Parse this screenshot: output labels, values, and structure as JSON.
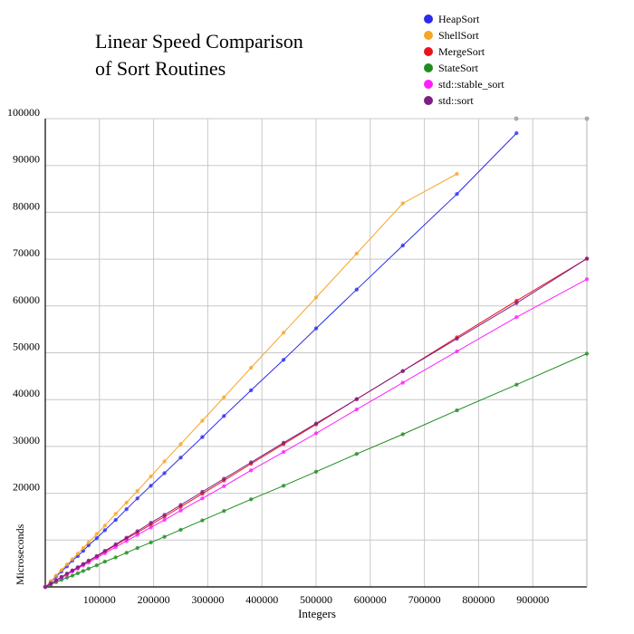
{
  "chart_data": {
    "type": "line",
    "title": [
      "Linear Speed Comparison",
      "of Sort Routines"
    ],
    "xlabel": "Integers",
    "ylabel": "Microseconds",
    "xlim": [
      0,
      1000000
    ],
    "ylim": [
      0,
      100000
    ],
    "xticks": [
      100000,
      200000,
      300000,
      400000,
      500000,
      600000,
      700000,
      800000,
      900000
    ],
    "xtick_labels": [
      "100000",
      "200000",
      "300000",
      "400000",
      "500000",
      "600000",
      "700000",
      "800000",
      "900000"
    ],
    "yticks": [
      20000,
      30000,
      40000,
      50000,
      60000,
      70000,
      80000,
      90000,
      100000
    ],
    "ytick_labels": [
      "20000",
      "30000",
      "40000",
      "50000",
      "60000",
      "70000",
      "80000",
      "90000",
      "100000"
    ],
    "grid": true,
    "legend_position": "top-right",
    "series": [
      {
        "name": "HeapSort",
        "color": "#2a2af2",
        "x": [
          0,
          10000,
          20000,
          30000,
          40000,
          50000,
          60000,
          70000,
          80000,
          95000,
          110000,
          130000,
          150000,
          170000,
          195000,
          220000,
          250000,
          290000,
          330000,
          380000,
          440000,
          500000,
          575000,
          660000,
          760000,
          870000
        ],
        "y": [
          0,
          1100,
          2200,
          3300,
          4400,
          5600,
          6600,
          7700,
          8900,
          10400,
          12100,
          14300,
          16600,
          18900,
          21600,
          24300,
          27600,
          32000,
          36500,
          42000,
          48500,
          55200,
          63500,
          72900,
          83900,
          96900
        ]
      },
      {
        "name": "ShellSort",
        "color": "#f5a623",
        "x": [
          0,
          10000,
          20000,
          30000,
          40000,
          50000,
          60000,
          70000,
          80000,
          95000,
          110000,
          130000,
          150000,
          170000,
          195000,
          220000,
          250000,
          290000,
          330000,
          380000,
          440000,
          500000,
          575000,
          660000,
          760000
        ],
        "y": [
          0,
          1200,
          2400,
          3600,
          4800,
          5900,
          7100,
          8300,
          9500,
          11300,
          13100,
          15600,
          18000,
          20500,
          23600,
          26800,
          30500,
          35500,
          40500,
          46800,
          54300,
          61800,
          71200,
          81900,
          88200
        ]
      },
      {
        "name": "MergeSort",
        "color": "#e8141e",
        "x": [
          0,
          10000,
          20000,
          30000,
          40000,
          50000,
          60000,
          70000,
          80000,
          95000,
          110000,
          130000,
          150000,
          170000,
          195000,
          220000,
          250000,
          290000,
          330000,
          380000,
          440000,
          500000,
          575000,
          660000,
          760000,
          870000,
          1000000
        ],
        "y": [
          0,
          700,
          1400,
          2100,
          2800,
          3500,
          4100,
          4800,
          5500,
          6500,
          7500,
          8900,
          10300,
          11600,
          13300,
          15000,
          17100,
          19900,
          22700,
          26300,
          30500,
          34700,
          40100,
          46100,
          53300,
          61100,
          70100
        ]
      },
      {
        "name": "StateSort",
        "color": "#1e8c1e",
        "x": [
          0,
          10000,
          20000,
          30000,
          40000,
          50000,
          60000,
          70000,
          80000,
          95000,
          110000,
          130000,
          150000,
          170000,
          195000,
          220000,
          250000,
          290000,
          330000,
          380000,
          440000,
          500000,
          575000,
          660000,
          760000,
          870000,
          1000000
        ],
        "y": [
          0,
          500,
          1000,
          1500,
          2000,
          2400,
          2900,
          3400,
          3900,
          4600,
          5400,
          6300,
          7300,
          8300,
          9500,
          10700,
          12200,
          14200,
          16200,
          18700,
          21600,
          24600,
          28400,
          32600,
          37700,
          43200,
          49800
        ]
      },
      {
        "name": "std::stable_sort",
        "color": "#ff1eff",
        "x": [
          0,
          10000,
          20000,
          30000,
          40000,
          50000,
          60000,
          70000,
          80000,
          95000,
          110000,
          130000,
          150000,
          170000,
          195000,
          220000,
          250000,
          290000,
          330000,
          380000,
          440000,
          500000,
          575000,
          660000,
          760000,
          870000,
          1000000
        ],
        "y": [
          0,
          700,
          1300,
          2000,
          2600,
          3300,
          3900,
          4600,
          5200,
          6200,
          7200,
          8500,
          9800,
          11100,
          12700,
          14300,
          16300,
          18900,
          21500,
          24900,
          28800,
          32800,
          37900,
          43600,
          50300,
          57600,
          65700
        ]
      },
      {
        "name": "std::sort",
        "color": "#7d1e82",
        "x": [
          0,
          10000,
          20000,
          30000,
          40000,
          50000,
          60000,
          70000,
          80000,
          95000,
          110000,
          130000,
          150000,
          170000,
          195000,
          220000,
          250000,
          290000,
          330000,
          380000,
          440000,
          500000,
          575000,
          660000,
          760000,
          870000,
          1000000
        ],
        "y": [
          0,
          700,
          1400,
          2100,
          2800,
          3500,
          4200,
          4900,
          5600,
          6600,
          7700,
          9100,
          10500,
          11900,
          13700,
          15400,
          17500,
          20300,
          23100,
          26600,
          30800,
          34900,
          40100,
          46100,
          53000,
          60600,
          70100
        ]
      }
    ]
  }
}
